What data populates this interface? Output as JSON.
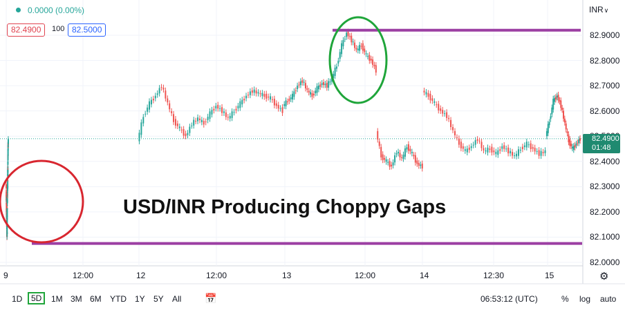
{
  "header": {
    "change_text": "0.0000 (0.00%)",
    "bid": "82.4900",
    "spread": "100",
    "ask": "82.5000",
    "currency": "INR"
  },
  "chart_data": {
    "type": "candlestick",
    "title": "USD/INR Producing Choppy Gaps",
    "y_ticks": [
      "82.9000",
      "82.8000",
      "82.7000",
      "82.6000",
      "82.5000",
      "82.4000",
      "82.3000",
      "82.2000",
      "82.1000",
      "82.0000"
    ],
    "ylim": [
      82.0,
      82.95
    ],
    "x_ticks": [
      "9",
      "12:00",
      "12",
      "12:00",
      "13",
      "12:00",
      "14",
      "12:30",
      "15"
    ],
    "last_price": "82.4900",
    "countdown": "01:48",
    "current_price_line": 82.49,
    "series": [
      {
        "segment": "day-9",
        "x_range": [
          9,
          12
        ],
        "values": [
          82.31,
          82.26,
          82.24,
          82.2,
          82.18,
          82.2,
          82.16,
          82.13,
          82.1,
          82.12,
          82.17,
          82.22,
          82.26,
          82.28,
          82.3,
          82.29,
          82.33,
          82.36,
          82.4,
          82.43,
          82.46,
          82.47,
          82.48
        ]
      },
      {
        "segment": "day-12",
        "x_range": [
          200,
          410
        ],
        "values": [
          82.48,
          82.58,
          82.63,
          82.66,
          82.7,
          82.63,
          82.56,
          82.53,
          82.5,
          82.55,
          82.57,
          82.55,
          82.59,
          82.62,
          82.6,
          82.57,
          82.6,
          82.63,
          82.66,
          82.68,
          82.67,
          82.66,
          82.65,
          82.62,
          82.6
        ]
      },
      {
        "segment": "day-13",
        "x_range": [
          410,
          545
        ],
        "values": [
          82.62,
          82.64,
          82.66,
          82.7,
          82.72,
          82.68,
          82.66,
          82.69,
          82.71,
          82.7,
          82.73,
          82.78,
          82.86,
          82.91,
          82.88,
          82.84,
          82.86,
          82.82,
          82.8,
          82.76
        ]
      },
      {
        "segment": "day-13-late",
        "x_range": [
          545,
          612
        ],
        "values": [
          82.52,
          82.42,
          82.4,
          82.38,
          82.44,
          82.41,
          82.46,
          82.43,
          82.39,
          82.38
        ]
      },
      {
        "segment": "day-14",
        "x_range": [
          612,
          790
        ],
        "values": [
          82.68,
          82.66,
          82.63,
          82.6,
          82.58,
          82.52,
          82.47,
          82.44,
          82.46,
          82.49,
          82.44,
          82.45,
          82.43,
          82.46,
          82.44,
          82.42,
          82.45,
          82.47,
          82.45,
          82.43,
          82.44
        ]
      },
      {
        "segment": "day-15",
        "x_range": [
          790,
          840
        ],
        "values": [
          82.5,
          82.56,
          82.64,
          82.66,
          82.62,
          82.55,
          82.48,
          82.45,
          82.47,
          82.49
        ]
      }
    ],
    "annotations": [
      {
        "kind": "horizontal-line",
        "y": 82.92,
        "color": "#9c3fa3"
      },
      {
        "kind": "horizontal-line",
        "y": 82.075,
        "color": "#9c3fa3"
      },
      {
        "kind": "ellipse",
        "color": "#d8262f",
        "label": "low region"
      },
      {
        "kind": "ellipse",
        "color": "#1fa53a",
        "label": "high region"
      }
    ],
    "grid": true,
    "up_color": "#26a69a",
    "down_color": "#ef5350"
  },
  "footer": {
    "timeframes": [
      "1D",
      "5D",
      "1M",
      "3M",
      "6M",
      "YTD",
      "1Y",
      "5Y",
      "All"
    ],
    "active_timeframe": "5D",
    "clock": "06:53:12 (UTC)",
    "percent": "%",
    "log": "log",
    "auto": "auto"
  },
  "icons": {
    "settings": "gear-icon",
    "compare": "calendar-range-icon",
    "currency_menu": "chevron-down-icon"
  }
}
